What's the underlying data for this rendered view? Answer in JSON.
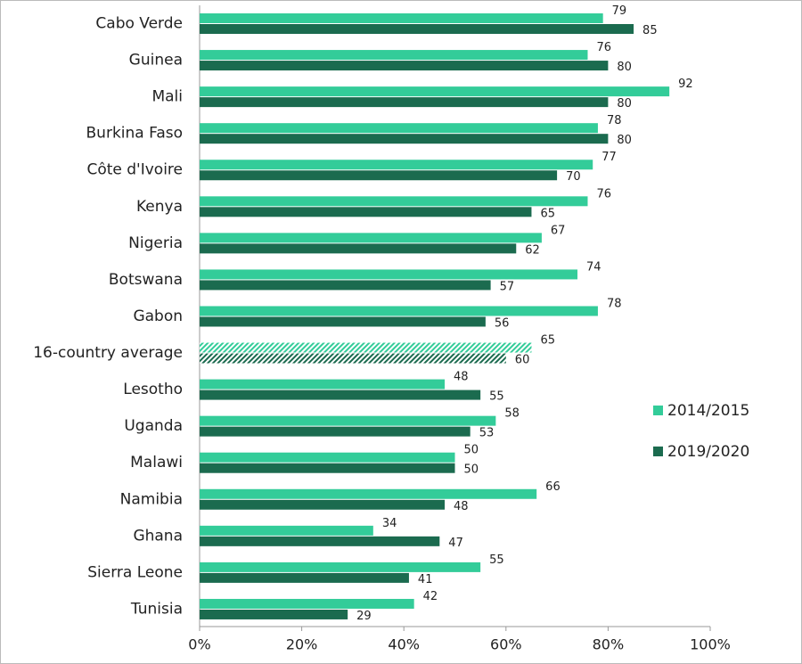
{
  "chart_data": {
    "type": "bar",
    "orientation": "horizontal",
    "categories": [
      "Cabo Verde",
      "Guinea",
      "Mali",
      "Burkina Faso",
      "Côte d'Ivoire",
      "Kenya",
      "Nigeria",
      "Botswana",
      "Gabon",
      "16-country average",
      "Lesotho",
      "Uganda",
      "Malawi",
      "Namibia",
      "Ghana",
      "Sierra Leone",
      "Tunisia"
    ],
    "series": [
      {
        "name": "2014/2015",
        "color": "#33cc99",
        "values": [
          79,
          76,
          92,
          78,
          77,
          76,
          67,
          74,
          78,
          65,
          48,
          58,
          50,
          66,
          34,
          55,
          42
        ]
      },
      {
        "name": "2019/2020",
        "color": "#1b6b4f",
        "values": [
          85,
          80,
          80,
          80,
          70,
          65,
          62,
          57,
          56,
          60,
          55,
          53,
          50,
          48,
          47,
          41,
          29
        ]
      }
    ],
    "hatched_index": 9,
    "xlim": [
      0,
      100
    ],
    "xticks": [
      {
        "value": 0,
        "label": "0%"
      },
      {
        "value": 20,
        "label": "20%"
      },
      {
        "value": 40,
        "label": "40%"
      },
      {
        "value": 60,
        "label": "60%"
      },
      {
        "value": 80,
        "label": "80%"
      },
      {
        "value": 100,
        "label": "100%"
      }
    ],
    "legend": "right"
  }
}
